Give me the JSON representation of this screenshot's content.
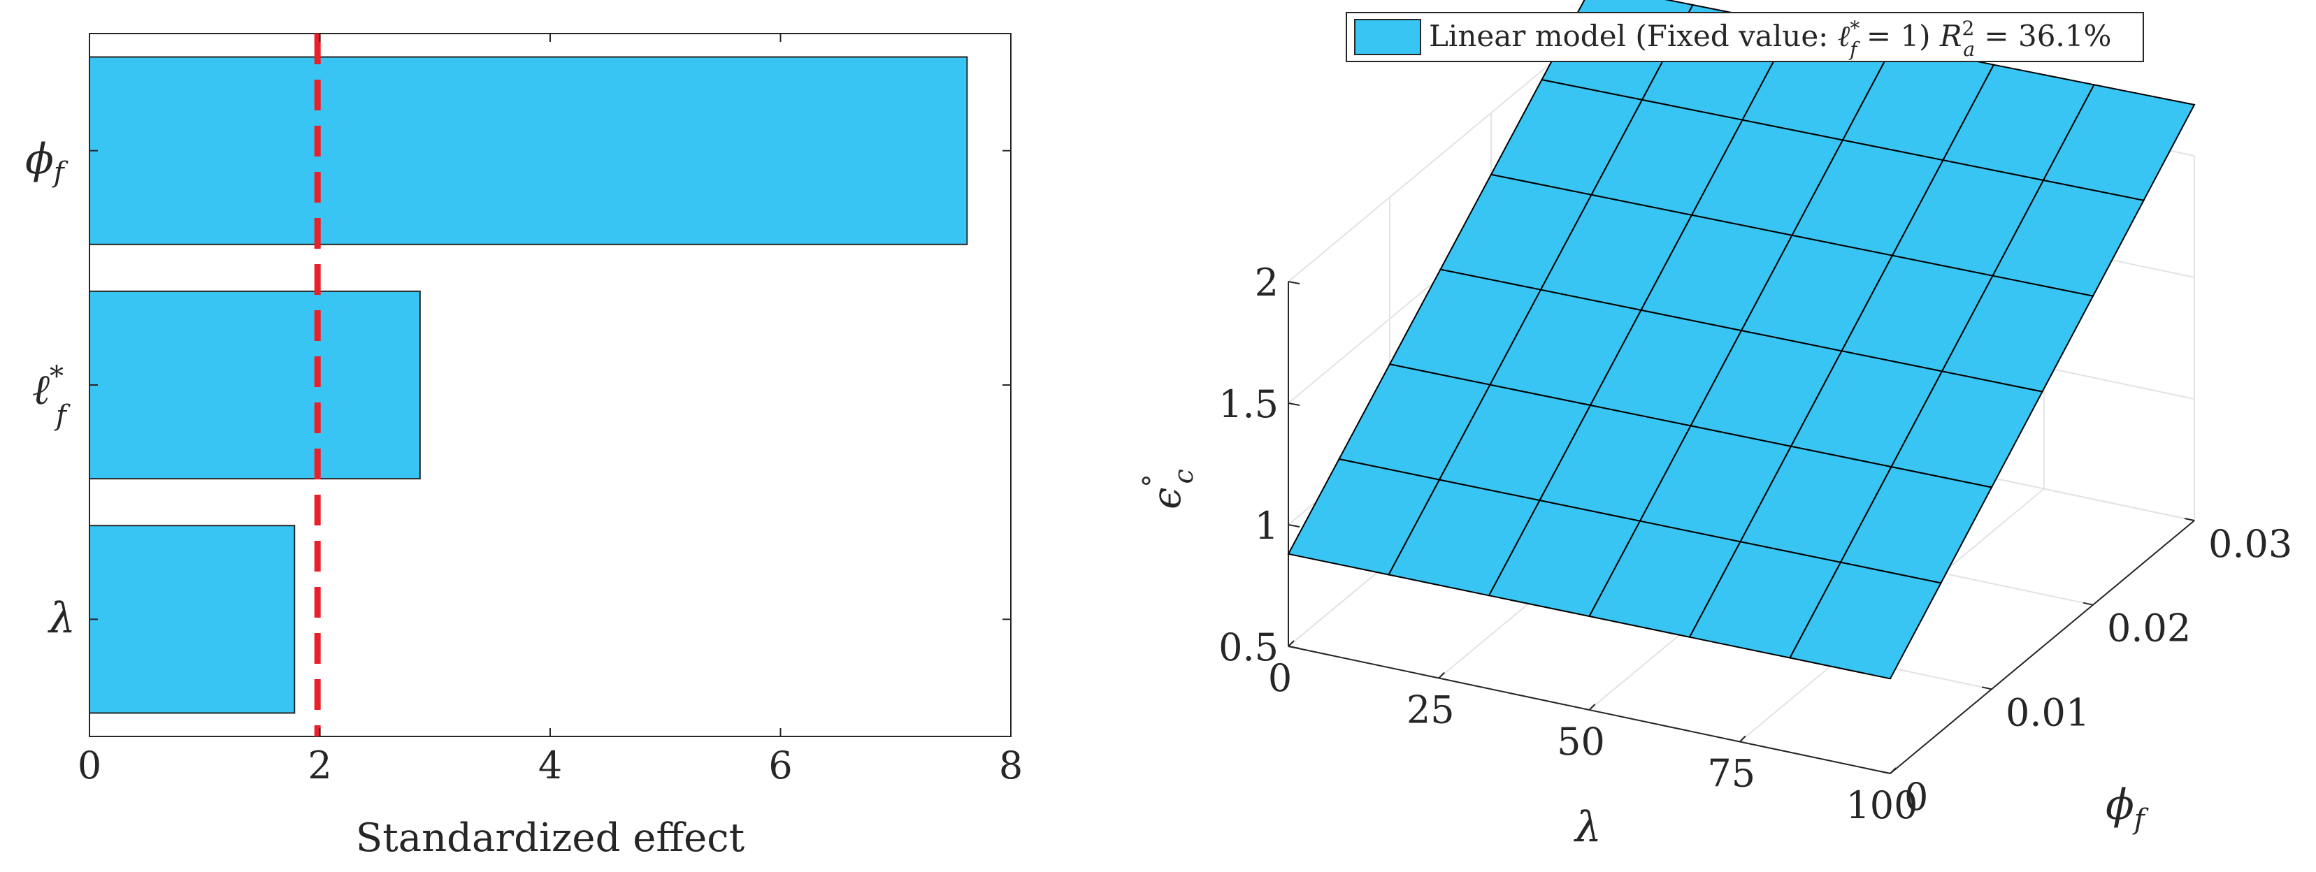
{
  "chart_data": [
    {
      "type": "bar",
      "orientation": "horizontal",
      "categories": [
        "ϕf",
        "ℓ*f",
        "λ"
      ],
      "values": [
        7.62,
        2.87,
        1.78
      ],
      "xlabel": "Standardized effect",
      "ylabel": "",
      "xlim": [
        0,
        8
      ],
      "xticks": [
        "0",
        "2",
        "4",
        "6",
        "8"
      ],
      "reference_line": {
        "x": 1.98,
        "style": "dashed",
        "color": "#e8202a"
      },
      "bar_color": "#38c5f3",
      "grid": false
    },
    {
      "type": "surface",
      "legend": {
        "label": "Linear model (Fixed value: ℓ*f = 1) R²a = 36.1%",
        "placement": "top"
      },
      "x": {
        "label": "λ",
        "lim": [
          0,
          100
        ],
        "ticks": [
          "0",
          "25",
          "50",
          "75",
          "100"
        ]
      },
      "y": {
        "label": "ϕf",
        "lim": [
          0,
          0.03
        ],
        "ticks": [
          "0",
          "0.01",
          "0.02",
          "0.03"
        ]
      },
      "z": {
        "label": "ϵ°c",
        "lim": [
          0.5,
          2
        ],
        "ticks": [
          "0.5",
          "1",
          "1.5",
          "2"
        ]
      },
      "corners": {
        "lambda_0_phi_0": 0.88,
        "lambda_100_phi_0": 0.89,
        "lambda_0_phi_003": 2.18,
        "lambda_100_phi_003": 2.21
      },
      "mesh": {
        "lambda_steps": 6,
        "phi_steps": 6
      },
      "surface_color": "#38c5f3",
      "grid": true
    }
  ],
  "labels": {
    "bar_cat_phi_main": "ϕ",
    "bar_cat_phi_sub": "f",
    "bar_cat_ell_main": "ℓ",
    "bar_cat_ell_sup": "*",
    "bar_cat_ell_sub": "f",
    "bar_cat_lambda": "λ",
    "legend_part1": "Linear model (Fixed value: ",
    "legend_ell": "ℓ",
    "legend_ell_sup": "*",
    "legend_ell_sub": "f",
    "legend_part2": " = 1) ",
    "legend_R": "R",
    "legend_R_sup": "2",
    "legend_R_sub": "a",
    "legend_part3": " = 36.1%",
    "z_label_main": "ϵ",
    "z_label_sup": "°",
    "z_label_sub": "c",
    "x3d_label": "λ",
    "y3d_label_main": "ϕ",
    "y3d_label_sub": "f"
  }
}
